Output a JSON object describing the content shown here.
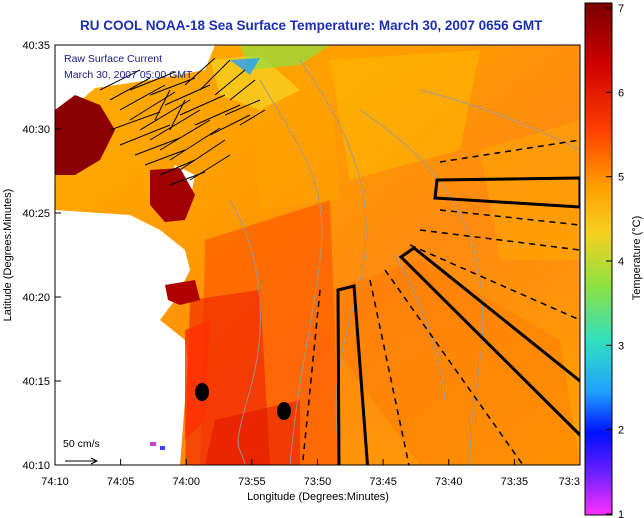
{
  "title": "RU COOL  NOAA-18  Sea Surface Temperature:  March 30, 2007 0656 GMT",
  "legend": {
    "line1": "Raw Surface Current",
    "line2": "March 30, 2007 05:00 GMT",
    "scale_label": "50 cm/s"
  },
  "axes": {
    "xlabel": "Longitude (Degrees:Minutes)",
    "ylabel": "Latitude (Degrees:Minutes)",
    "xticks": [
      "74:10",
      "74:05",
      "74:00",
      "73:55",
      "73:50",
      "73:45",
      "73:40",
      "73:35",
      "73:3"
    ],
    "yticks": [
      "40:35",
      "40:30",
      "40:25",
      "40:20",
      "40:15",
      "40:10"
    ]
  },
  "colorbar": {
    "label": "Temperature (°C)",
    "ticks": [
      "7",
      "6",
      "5",
      "4",
      "3",
      "2",
      "1"
    ],
    "colors": [
      "#7a0000",
      "#d00000",
      "#ff5a00",
      "#ffb300",
      "#f0e030",
      "#90e040",
      "#30e0c0",
      "#20a0ff",
      "#0010ff",
      "#6020ff",
      "#ff20ff"
    ]
  },
  "colors": {
    "land": "#ffffff",
    "title": "#1a2fb4",
    "frame": "#000000"
  }
}
